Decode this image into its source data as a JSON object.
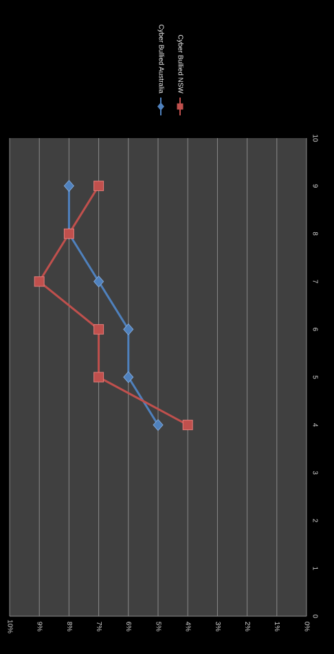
{
  "chart_data": {
    "type": "line",
    "orientation": "rotated-90-clockwise",
    "x": [
      4,
      5,
      6,
      7,
      8,
      9
    ],
    "xlim": [
      0,
      10
    ],
    "x_ticks": [
      "0",
      "1",
      "2",
      "3",
      "4",
      "5",
      "6",
      "7",
      "8",
      "9",
      "10"
    ],
    "ylim": [
      0,
      10
    ],
    "y_ticks": [
      "0%",
      "1%",
      "2%",
      "3%",
      "4%",
      "5%",
      "6%",
      "7%",
      "8%",
      "9%",
      "10%"
    ],
    "grid": true,
    "legend_position": "right",
    "series": [
      {
        "name": "Cyber Bullied Australia",
        "values": [
          5,
          6,
          6,
          7,
          8,
          8
        ],
        "color": "#4f81bd",
        "marker": "diamond"
      },
      {
        "name": "Cyber Bullied NSW",
        "values": [
          4,
          7,
          7,
          9,
          8,
          7
        ],
        "color": "#c0504d",
        "marker": "square"
      }
    ],
    "plot_background": "#404040",
    "gridline_color": "#8a8a8a"
  }
}
